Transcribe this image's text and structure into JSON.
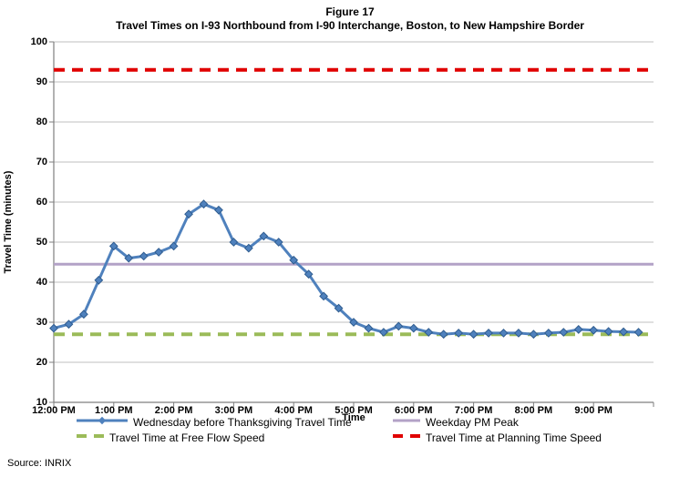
{
  "chart_data": {
    "type": "line",
    "title": "Figure 17",
    "subtitle": "Travel Times on I-93 Northbound from I-90 Interchange, Boston, to New Hampshire Border",
    "xlabel": "Time",
    "ylabel": "Travel Time (minutes)",
    "ylim": [
      10,
      100
    ],
    "ytick_step": 10,
    "y_tick_labels": [
      "10",
      "20",
      "30",
      "40",
      "50",
      "60",
      "70",
      "80",
      "90",
      "100"
    ],
    "x_hour_labels": [
      "12:00 PM",
      "1:00 PM",
      "2:00 PM",
      "3:00 PM",
      "4:00 PM",
      "5:00 PM",
      "6:00 PM",
      "7:00 PM",
      "8:00 PM",
      "9:00 PM"
    ],
    "x_range_minutes": [
      0,
      600
    ],
    "grid_color": "#bfbfbf",
    "axis_color": "#7f7f7f",
    "series": [
      {
        "name": "Wednesday before Thanksgiving Travel Time",
        "color": "#4f81bd",
        "marker_edge_color": "#2f5c8f",
        "marker": "diamond",
        "x_minutes": [
          0,
          15,
          30,
          45,
          60,
          75,
          90,
          105,
          120,
          135,
          150,
          165,
          180,
          195,
          210,
          225,
          240,
          255,
          270,
          285,
          300,
          315,
          330,
          345,
          360,
          375,
          390,
          405,
          420,
          435,
          450,
          465,
          480,
          495,
          510,
          525,
          540,
          555,
          570,
          585
        ],
        "values": [
          28.5,
          29.5,
          32,
          40.5,
          49,
          46,
          46.5,
          47.5,
          49,
          57,
          59.5,
          58,
          50,
          48.5,
          51.5,
          50,
          45.5,
          42,
          36.5,
          33.5,
          30,
          28.5,
          27.5,
          29,
          28.5,
          27.5,
          27,
          27.3,
          27,
          27.3,
          27.3,
          27.3,
          27,
          27.3,
          27.5,
          28.2,
          28,
          27.7,
          27.6,
          27.5
        ]
      }
    ],
    "reference_lines": [
      {
        "name": "Travel Time at Planning Time Speed",
        "value": 93,
        "color": "#e00000",
        "style": "dashed"
      },
      {
        "name": "Weekday PM Peak",
        "value": 44.5,
        "color": "#b3a2c7",
        "style": "solid"
      },
      {
        "name": "Travel Time at Free Flow Speed",
        "value": 27,
        "color": "#9bbb59",
        "style": "dashed"
      }
    ],
    "legend": {
      "left": [
        {
          "label": "Wednesday before Thanksgiving Travel Time",
          "color": "#4f81bd",
          "swatch": "line-marker"
        },
        {
          "label": "Travel Time at Free Flow Speed",
          "color": "#9bbb59",
          "swatch": "dashed"
        }
      ],
      "right": [
        {
          "label": "Weekday PM Peak",
          "color": "#b3a2c7",
          "swatch": "line"
        },
        {
          "label": "Travel Time at Planning Time Speed",
          "color": "#e00000",
          "swatch": "dashed"
        }
      ]
    },
    "source": "Source: INRIX"
  }
}
